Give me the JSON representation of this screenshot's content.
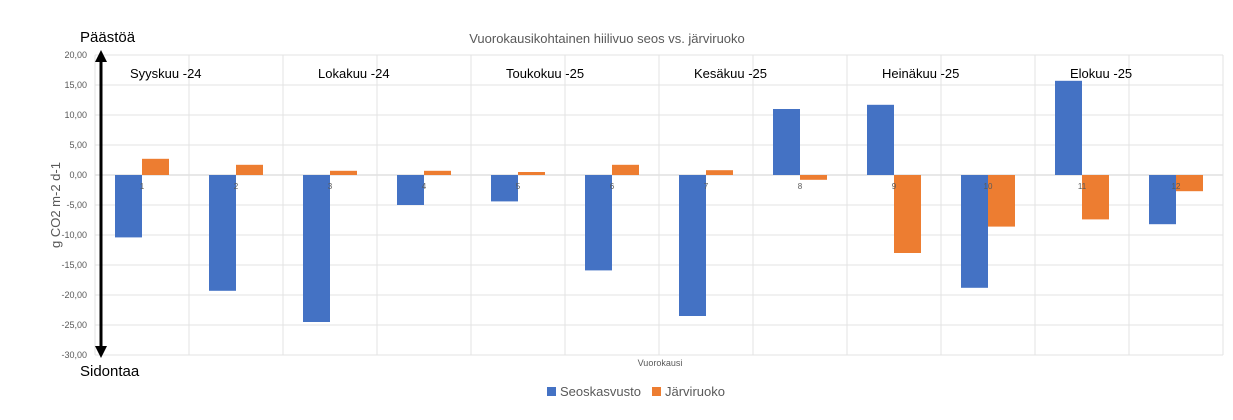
{
  "chart_data": {
    "type": "bar",
    "title": "Vuorokausikohtainen hiilivuo seos vs. järviruoko",
    "xlabel": "Vuorokausi",
    "ylabel": "g CO2 m-2 d-1",
    "ylim": [
      -30,
      20
    ],
    "ytick_step": 5,
    "ytick_labels": [
      "20,00",
      "15,00",
      "10,00",
      "5,00",
      "0,00",
      "-5,00",
      "-10,00",
      "-15,00",
      "-20,00",
      "-25,00",
      "-30,00"
    ],
    "categories": [
      "1",
      "2",
      "3",
      "4",
      "5",
      "6",
      "7",
      "8",
      "9",
      "10",
      "11",
      "12"
    ],
    "series": [
      {
        "name": "Seoskasvusto",
        "color": "#4472C4",
        "values": [
          -10.4,
          -19.3,
          -24.5,
          -5.0,
          -4.4,
          -15.9,
          -23.5,
          11.0,
          11.7,
          -18.8,
          15.7,
          -8.2
        ]
      },
      {
        "name": "Järviruoko",
        "color": "#ED7D31",
        "values": [
          2.7,
          1.7,
          0.7,
          0.7,
          0.5,
          1.7,
          0.8,
          -0.8,
          -13.0,
          -8.6,
          -7.4,
          -2.7
        ]
      }
    ],
    "grid": true,
    "legend_position": "bottom",
    "annotations": {
      "top_arrow_label": "Päästöä",
      "bottom_arrow_label": "Sidontaa",
      "months": [
        {
          "label": "Syyskuu -24",
          "category": "1"
        },
        {
          "label": "Lokakuu -24",
          "category": "3"
        },
        {
          "label": "Toukokuu -25",
          "category": "5"
        },
        {
          "label": "Kesäkuu -25",
          "category": "7"
        },
        {
          "label": "Heinäkuu -25",
          "category": "9"
        },
        {
          "label": "Elokuu -25",
          "category": "11"
        }
      ]
    }
  }
}
